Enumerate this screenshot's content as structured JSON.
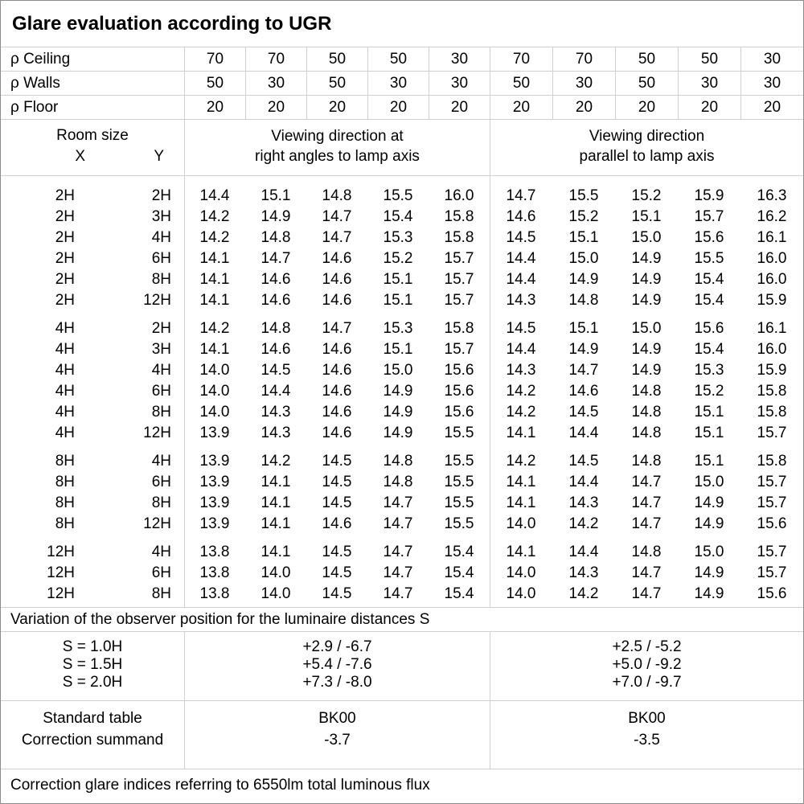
{
  "title": "Glare evaluation according to UGR",
  "colors": {
    "background": "#ffffff",
    "text": "#000000",
    "grid_line": "#d0d0d0",
    "outer_border": "#8c8c8c"
  },
  "reflectances": {
    "rows": [
      {
        "label": "ρ Ceiling",
        "values": [
          "70",
          "70",
          "50",
          "50",
          "30",
          "70",
          "70",
          "50",
          "50",
          "30"
        ]
      },
      {
        "label": "ρ Walls",
        "values": [
          "50",
          "30",
          "50",
          "30",
          "30",
          "50",
          "30",
          "50",
          "30",
          "30"
        ]
      },
      {
        "label": "ρ Floor",
        "values": [
          "20",
          "20",
          "20",
          "20",
          "20",
          "20",
          "20",
          "20",
          "20",
          "20"
        ]
      }
    ]
  },
  "header": {
    "room_size_label": "Room size",
    "x_label": "X",
    "y_label": "Y",
    "directions": [
      {
        "lines": [
          "Viewing direction at",
          "right angles to lamp axis"
        ]
      },
      {
        "lines": [
          "Viewing direction",
          "parallel to lamp axis"
        ]
      }
    ]
  },
  "ugr_groups": [
    {
      "rows": [
        {
          "x": "2H",
          "y": "2H",
          "values": [
            "14.4",
            "15.1",
            "14.8",
            "15.5",
            "16.0",
            "14.7",
            "15.5",
            "15.2",
            "15.9",
            "16.3"
          ]
        },
        {
          "x": "2H",
          "y": "3H",
          "values": [
            "14.2",
            "14.9",
            "14.7",
            "15.4",
            "15.8",
            "14.6",
            "15.2",
            "15.1",
            "15.7",
            "16.2"
          ]
        },
        {
          "x": "2H",
          "y": "4H",
          "values": [
            "14.2",
            "14.8",
            "14.7",
            "15.3",
            "15.8",
            "14.5",
            "15.1",
            "15.0",
            "15.6",
            "16.1"
          ]
        },
        {
          "x": "2H",
          "y": "6H",
          "values": [
            "14.1",
            "14.7",
            "14.6",
            "15.2",
            "15.7",
            "14.4",
            "15.0",
            "14.9",
            "15.5",
            "16.0"
          ]
        },
        {
          "x": "2H",
          "y": "8H",
          "values": [
            "14.1",
            "14.6",
            "14.6",
            "15.1",
            "15.7",
            "14.4",
            "14.9",
            "14.9",
            "15.4",
            "16.0"
          ]
        },
        {
          "x": "2H",
          "y": "12H",
          "values": [
            "14.1",
            "14.6",
            "14.6",
            "15.1",
            "15.7",
            "14.3",
            "14.8",
            "14.9",
            "15.4",
            "15.9"
          ]
        }
      ]
    },
    {
      "rows": [
        {
          "x": "4H",
          "y": "2H",
          "values": [
            "14.2",
            "14.8",
            "14.7",
            "15.3",
            "15.8",
            "14.5",
            "15.1",
            "15.0",
            "15.6",
            "16.1"
          ]
        },
        {
          "x": "4H",
          "y": "3H",
          "values": [
            "14.1",
            "14.6",
            "14.6",
            "15.1",
            "15.7",
            "14.4",
            "14.9",
            "14.9",
            "15.4",
            "16.0"
          ]
        },
        {
          "x": "4H",
          "y": "4H",
          "values": [
            "14.0",
            "14.5",
            "14.6",
            "15.0",
            "15.6",
            "14.3",
            "14.7",
            "14.9",
            "15.3",
            "15.9"
          ]
        },
        {
          "x": "4H",
          "y": "6H",
          "values": [
            "14.0",
            "14.4",
            "14.6",
            "14.9",
            "15.6",
            "14.2",
            "14.6",
            "14.8",
            "15.2",
            "15.8"
          ]
        },
        {
          "x": "4H",
          "y": "8H",
          "values": [
            "14.0",
            "14.3",
            "14.6",
            "14.9",
            "15.6",
            "14.2",
            "14.5",
            "14.8",
            "15.1",
            "15.8"
          ]
        },
        {
          "x": "4H",
          "y": "12H",
          "values": [
            "13.9",
            "14.3",
            "14.6",
            "14.9",
            "15.5",
            "14.1",
            "14.4",
            "14.8",
            "15.1",
            "15.7"
          ]
        }
      ]
    },
    {
      "rows": [
        {
          "x": "8H",
          "y": "4H",
          "values": [
            "13.9",
            "14.2",
            "14.5",
            "14.8",
            "15.5",
            "14.2",
            "14.5",
            "14.8",
            "15.1",
            "15.8"
          ]
        },
        {
          "x": "8H",
          "y": "6H",
          "values": [
            "13.9",
            "14.1",
            "14.5",
            "14.8",
            "15.5",
            "14.1",
            "14.4",
            "14.7",
            "15.0",
            "15.7"
          ]
        },
        {
          "x": "8H",
          "y": "8H",
          "values": [
            "13.9",
            "14.1",
            "14.5",
            "14.7",
            "15.5",
            "14.1",
            "14.3",
            "14.7",
            "14.9",
            "15.7"
          ]
        },
        {
          "x": "8H",
          "y": "12H",
          "values": [
            "13.9",
            "14.1",
            "14.6",
            "14.7",
            "15.5",
            "14.0",
            "14.2",
            "14.7",
            "14.9",
            "15.6"
          ]
        }
      ]
    },
    {
      "rows": [
        {
          "x": "12H",
          "y": "4H",
          "values": [
            "13.8",
            "14.1",
            "14.5",
            "14.7",
            "15.4",
            "14.1",
            "14.4",
            "14.8",
            "15.0",
            "15.7"
          ]
        },
        {
          "x": "12H",
          "y": "6H",
          "values": [
            "13.8",
            "14.0",
            "14.5",
            "14.7",
            "15.4",
            "14.0",
            "14.3",
            "14.7",
            "14.9",
            "15.7"
          ]
        },
        {
          "x": "12H",
          "y": "8H",
          "values": [
            "13.8",
            "14.0",
            "14.5",
            "14.7",
            "15.4",
            "14.0",
            "14.2",
            "14.7",
            "14.9",
            "15.6"
          ]
        }
      ]
    }
  ],
  "variation_label": "Variation of the observer position for the luminaire distances S",
  "variation": {
    "rows": [
      {
        "s": "S = 1.0H",
        "right_angles": "+2.9 / -6.7",
        "parallel": "+2.5 / -5.2"
      },
      {
        "s": "S = 1.5H",
        "right_angles": "+5.4 / -7.6",
        "parallel": "+5.0 / -9.2"
      },
      {
        "s": "S = 2.0H",
        "right_angles": "+7.3 / -8.0",
        "parallel": "+7.0 / -9.7"
      }
    ]
  },
  "standard": {
    "labels": [
      "Standard table",
      "Correction summand"
    ],
    "right_angles": [
      "BK00",
      "-3.7"
    ],
    "parallel": [
      "BK00",
      "-3.5"
    ]
  },
  "footer": "Correction glare indices referring to 6550lm total luminous flux"
}
